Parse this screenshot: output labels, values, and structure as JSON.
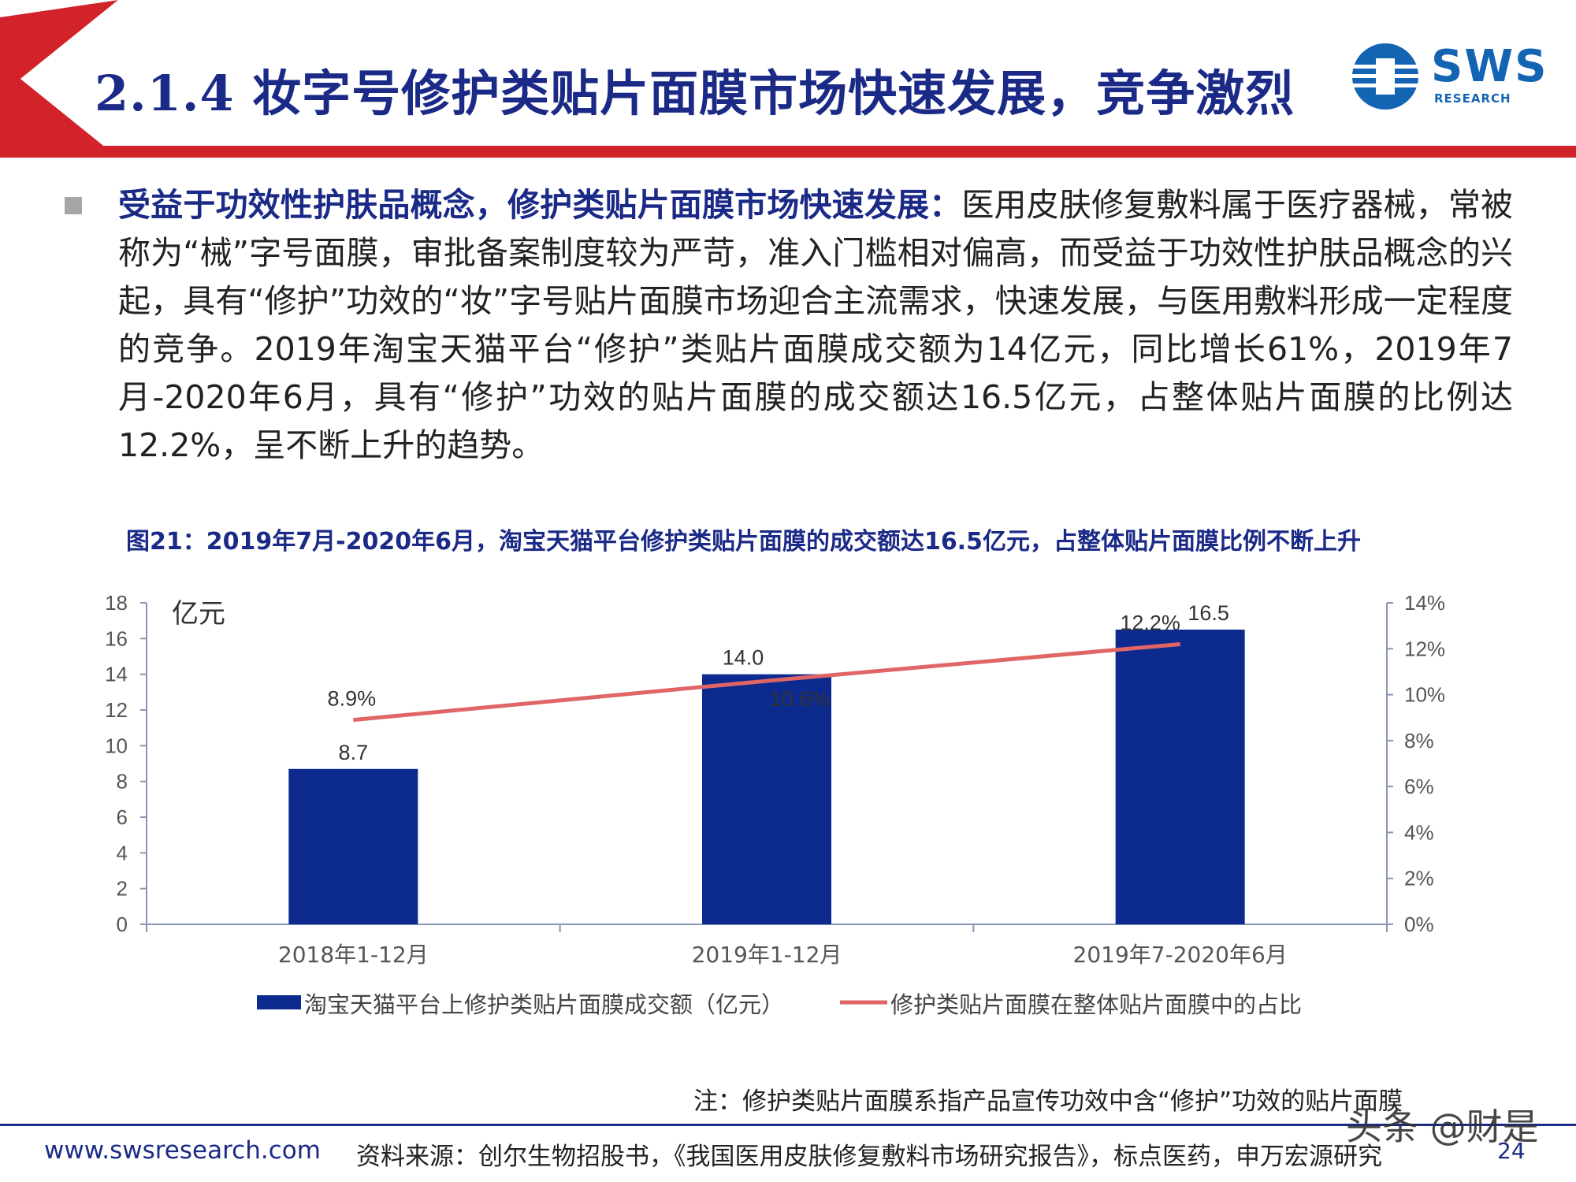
{
  "header": {
    "title": "2.1.4 妆字号修护类贴片面膜市场快速发展，竞争激烈",
    "logo_text": "SWS",
    "logo_sub": "RESEARCH",
    "accent_color": "#d2232a"
  },
  "bullet": {
    "lead": "受益于功效性护肤品概念，修护类贴片面膜市场快速发展：",
    "text": "医用皮肤修复敷料属于医疗器械，常被称为“械”字号面膜，审批备案制度较为严苛，准入门槛相对偏高，而受益于功效性护肤品概念的兴起，具有“修护”功效的“妆”字号贴片面膜市场迎合主流需求，快速发展，与医用敷料形成一定程度的竞争。2019年淘宝天猫平台“修护”类贴片面膜成交额为14亿元，同比增长61%，2019年7月-2020年6月，具有“修护”功效的贴片面膜的成交额达16.5亿元，占整体贴片面膜的比例达12.2%，呈不断上升的趋势。"
  },
  "figure": {
    "title": "图21：2019年7月-2020年6月，淘宝天猫平台修护类贴片面膜的成交额达16.5亿元，占整体贴片面膜比例不断上升"
  },
  "chart_data": {
    "type": "bar",
    "categories": [
      "2018年1-12月",
      "2019年1-12月",
      "2019年7-2020年6月"
    ],
    "series": [
      {
        "name": "淘宝天猫平台上修护类贴片面膜成交额（亿元）",
        "type": "bar",
        "axis": "left",
        "values": [
          8.7,
          14.0,
          16.5
        ],
        "labels": [
          "8.7",
          "14.0",
          "16.5"
        ],
        "color": "#0d2a8f"
      },
      {
        "name": "修护类贴片面膜在整体贴片面膜中的占比",
        "type": "line",
        "axis": "right",
        "values": [
          8.9,
          10.6,
          12.2
        ],
        "labels": [
          "8.9%",
          "10.6%",
          "12.2%"
        ],
        "color": "#e06666"
      }
    ],
    "y_left": {
      "label": "亿元",
      "min": 0,
      "max": 18,
      "ticks": [
        "0",
        "2",
        "4",
        "6",
        "8",
        "10",
        "12",
        "14",
        "16",
        "18"
      ]
    },
    "y_right": {
      "min": 0,
      "max": 14,
      "ticks": [
        "0%",
        "2%",
        "4%",
        "6%",
        "8%",
        "10%",
        "12%",
        "14%"
      ]
    },
    "legend_position": "bottom",
    "grid": false
  },
  "note": "注：修护类贴片面膜系指产品宣传功效中含“修护”功效的贴片面膜",
  "footer": {
    "url": "www.swsresearch.com",
    "source": "资料来源：创尔生物招股书，《我国医用皮肤修复敷料市场研究报告》，标点医药，申万宏源研究",
    "page": "24",
    "watermark": "头条 @财是"
  }
}
